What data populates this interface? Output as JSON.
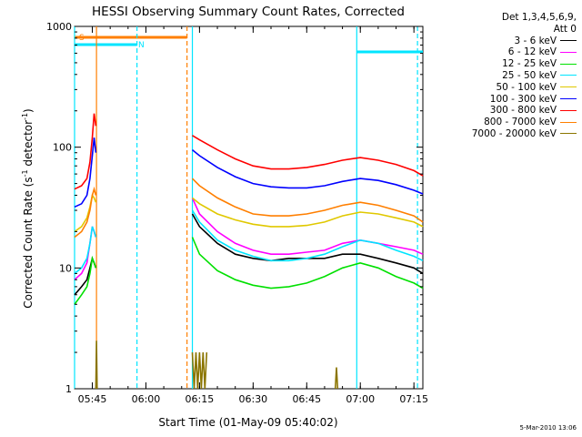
{
  "chart_data": {
    "type": "line",
    "title": "HESSI Observing Summary Count Rates, Corrected",
    "xlabel": "Start Time (01-May-09 05:40:02)",
    "ylabel_main": "Corrected Count Rate (s",
    "ylabel_sup1": "-1",
    "ylabel_mid": " detector",
    "ylabel_sup2": "-1",
    "ylabel_end": ")",
    "yscale": "log",
    "ylim": [
      1,
      1000
    ],
    "xlim": [
      "05:40:02",
      "07:17:30"
    ],
    "x_ticks": [
      "05:45",
      "06:00",
      "06:15",
      "06:30",
      "06:45",
      "07:00",
      "07:15"
    ],
    "y_ticks": [
      {
        "value": 1,
        "label": "1"
      },
      {
        "value": 10,
        "label": "10"
      },
      {
        "value": 100,
        "label": "100"
      },
      {
        "value": 1000,
        "label": "1000"
      }
    ],
    "legend_header": [
      "Det 1,3,4,5,6,9,",
      "Att 0"
    ],
    "legend_placement": "right",
    "flag_bars": [
      {
        "label": "S",
        "color": "#ff7f00",
        "start": "05:40:02",
        "end": "06:11:30"
      },
      {
        "label": "N",
        "color": "#00e5ff",
        "start": "05:40:02",
        "end": "05:57:30"
      },
      {
        "label": "",
        "color": "#00e5ff",
        "start": "06:59:00",
        "end": "07:17:30"
      }
    ],
    "vlines": [
      {
        "time": "05:40:02",
        "color": "#00e5ff",
        "style": "solid"
      },
      {
        "time": "05:46:10",
        "color": "#ff7f00",
        "style": "solid"
      },
      {
        "time": "05:57:30",
        "color": "#00e5ff",
        "style": "dashed"
      },
      {
        "time": "06:11:30",
        "color": "#ff7f00",
        "style": "dashed"
      },
      {
        "time": "06:13:00",
        "color": "#00e5ff",
        "style": "solid"
      },
      {
        "time": "06:59:00",
        "color": "#00e5ff",
        "style": "solid"
      },
      {
        "time": "07:16:00",
        "color": "#00e5ff",
        "style": "dashed"
      }
    ],
    "series": [
      {
        "name": "3 - 6 keV",
        "color": "#000000",
        "segments": [
          {
            "x": [
              "05:40:02",
              "05:42:00",
              "05:43:30",
              "05:44:20",
              "05:45:00",
              "05:45:30",
              "05:46:00"
            ],
            "y": [
              6,
              7,
              8,
              10,
              12,
              11,
              10
            ]
          },
          {
            "x": [
              "06:13:00",
              "06:15:00",
              "06:20:00",
              "06:25:00",
              "06:30:00",
              "06:35:00",
              "06:40:00",
              "06:45:00",
              "06:50:00",
              "06:55:00",
              "07:00:00",
              "07:05:00",
              "07:10:00",
              "07:15:00",
              "07:17:30"
            ],
            "y": [
              28,
              22,
              16,
              13,
              12,
              11.5,
              12,
              12,
              12,
              13,
              13,
              12,
              11,
              10,
              9
            ]
          }
        ]
      },
      {
        "name": "6 - 12 keV",
        "color": "#ff00ff",
        "segments": [
          {
            "x": [
              "05:40:02",
              "05:42:00",
              "05:43:30",
              "05:44:20",
              "05:45:00",
              "05:45:30",
              "05:46:00"
            ],
            "y": [
              8,
              9,
              11,
              16,
              22,
              20,
              18
            ]
          },
          {
            "x": [
              "06:13:00",
              "06:15:00",
              "06:20:00",
              "06:25:00",
              "06:30:00",
              "06:35:00",
              "06:40:00",
              "06:45:00",
              "06:50:00",
              "06:55:00",
              "07:00:00",
              "07:05:00",
              "07:10:00",
              "07:15:00",
              "07:17:30"
            ],
            "y": [
              38,
              28,
              20,
              16,
              14,
              13,
              13,
              13.5,
              14,
              16,
              17,
              16,
              15,
              14,
              13
            ]
          }
        ]
      },
      {
        "name": "12 - 25 keV",
        "color": "#00e000",
        "segments": [
          {
            "x": [
              "05:40:02",
              "05:42:00",
              "05:43:30",
              "05:44:20",
              "05:45:00",
              "05:45:30",
              "05:46:00"
            ],
            "y": [
              5,
              6,
              7,
              9,
              12,
              11,
              10
            ]
          },
          {
            "x": [
              "06:13:00",
              "06:15:00",
              "06:20:00",
              "06:25:00",
              "06:30:00",
              "06:35:00",
              "06:40:00",
              "06:45:00",
              "06:50:00",
              "06:55:00",
              "07:00:00",
              "07:05:00",
              "07:10:00",
              "07:15:00",
              "07:17:30"
            ],
            "y": [
              18,
              13,
              9.5,
              8,
              7.2,
              6.8,
              7,
              7.5,
              8.5,
              10,
              11,
              10,
              8.5,
              7.5,
              6.8
            ]
          }
        ]
      },
      {
        "name": "25 - 50 keV",
        "color": "#00e5ff",
        "segments": [
          {
            "x": [
              "05:40:02",
              "05:42:00",
              "05:43:30",
              "05:44:20",
              "05:45:00",
              "05:45:30",
              "05:46:00"
            ],
            "y": [
              9,
              10,
              12,
              16,
              22,
              20,
              18
            ]
          },
          {
            "x": [
              "06:13:00",
              "06:15:00",
              "06:20:00",
              "06:25:00",
              "06:30:00",
              "06:35:00",
              "06:40:00",
              "06:45:00",
              "06:50:00",
              "06:55:00",
              "07:00:00",
              "07:05:00",
              "07:10:00",
              "07:15:00",
              "07:17:30"
            ],
            "y": [
              30,
              24,
              17,
              14,
              12.5,
              11.5,
              11.5,
              12,
              13,
              15,
              17,
              16,
              14,
              12.5,
              11.5
            ]
          }
        ]
      },
      {
        "name": "50 - 100 keV",
        "color": "#e0c800",
        "segments": [
          {
            "x": [
              "05:40:02",
              "05:42:00",
              "05:43:30",
              "05:44:20",
              "05:45:00",
              "05:45:30",
              "05:46:00"
            ],
            "y": [
              20,
              22,
              26,
              32,
              40,
              38,
              35
            ]
          },
          {
            "x": [
              "06:13:00",
              "06:15:00",
              "06:20:00",
              "06:25:00",
              "06:30:00",
              "06:35:00",
              "06:40:00",
              "06:45:00",
              "06:50:00",
              "06:55:00",
              "07:00:00",
              "07:05:00",
              "07:10:00",
              "07:15:00",
              "07:17:30"
            ],
            "y": [
              38,
              34,
              28,
              25,
              23,
              22,
              22,
              22.5,
              24,
              27,
              29,
              28,
              26,
              24,
              22
            ]
          }
        ]
      },
      {
        "name": "100 - 300 keV",
        "color": "#0000ff",
        "segments": [
          {
            "x": [
              "05:40:02",
              "05:42:00",
              "05:43:30",
              "05:44:20",
              "05:45:00",
              "05:45:30",
              "05:46:00"
            ],
            "y": [
              32,
              34,
              40,
              55,
              85,
              120,
              90
            ]
          },
          {
            "x": [
              "06:13:00",
              "06:15:00",
              "06:20:00",
              "06:25:00",
              "06:30:00",
              "06:35:00",
              "06:40:00",
              "06:45:00",
              "06:50:00",
              "06:55:00",
              "07:00:00",
              "07:05:00",
              "07:10:00",
              "07:15:00",
              "07:17:30"
            ],
            "y": [
              95,
              85,
              68,
              57,
              50,
              47,
              46,
              46,
              48,
              52,
              55,
              53,
              49,
              44,
              41
            ]
          }
        ]
      },
      {
        "name": "300 - 800 keV",
        "color": "#ff0000",
        "segments": [
          {
            "x": [
              "05:40:02",
              "05:42:00",
              "05:43:30",
              "05:44:20",
              "05:45:00",
              "05:45:30",
              "05:46:00"
            ],
            "y": [
              45,
              48,
              55,
              75,
              120,
              190,
              150
            ]
          },
          {
            "x": [
              "06:13:00",
              "06:15:00",
              "06:20:00",
              "06:25:00",
              "06:30:00",
              "06:35:00",
              "06:40:00",
              "06:45:00",
              "06:50:00",
              "06:55:00",
              "07:00:00",
              "07:05:00",
              "07:10:00",
              "07:15:00",
              "07:17:30"
            ],
            "y": [
              125,
              115,
              95,
              80,
              70,
              66,
              66,
              68,
              72,
              78,
              82,
              78,
              72,
              64,
              58
            ]
          }
        ]
      },
      {
        "name": "800 - 7000 keV",
        "color": "#ff7f00",
        "segments": [
          {
            "x": [
              "05:40:02",
              "05:42:00",
              "05:43:30",
              "05:44:20",
              "05:45:00",
              "05:45:30",
              "05:46:00"
            ],
            "y": [
              18,
              20,
              24,
              30,
              40,
              45,
              40
            ]
          },
          {
            "x": [
              "06:13:00",
              "06:15:00",
              "06:20:00",
              "06:25:00",
              "06:30:00",
              "06:35:00",
              "06:40:00",
              "06:45:00",
              "06:50:00",
              "06:55:00",
              "07:00:00",
              "07:05:00",
              "07:10:00",
              "07:15:00",
              "07:17:30"
            ],
            "y": [
              55,
              48,
              38,
              32,
              28,
              27,
              27,
              28,
              30,
              33,
              35,
              33,
              30,
              27,
              24
            ]
          }
        ]
      },
      {
        "name": "7000 - 20000 keV",
        "color": "#8b7500",
        "segments": [
          {
            "x": [
              "05:46:00",
              "05:46:10",
              "05:46:20"
            ],
            "y": [
              1,
              2.5,
              1
            ]
          },
          {
            "x": [
              "06:13:00",
              "06:13:30",
              "06:14:00",
              "06:14:30",
              "06:15:00",
              "06:15:30",
              "06:16:00",
              "06:16:30",
              "06:17:00"
            ],
            "y": [
              2,
              1,
              2,
              1,
              2,
              1,
              2,
              1,
              2
            ]
          },
          {
            "x": [
              "06:53:00",
              "06:53:20",
              "06:53:40"
            ],
            "y": [
              1,
              1.5,
              1
            ]
          }
        ]
      }
    ],
    "footer": "5-Mar-2010 13:06"
  }
}
